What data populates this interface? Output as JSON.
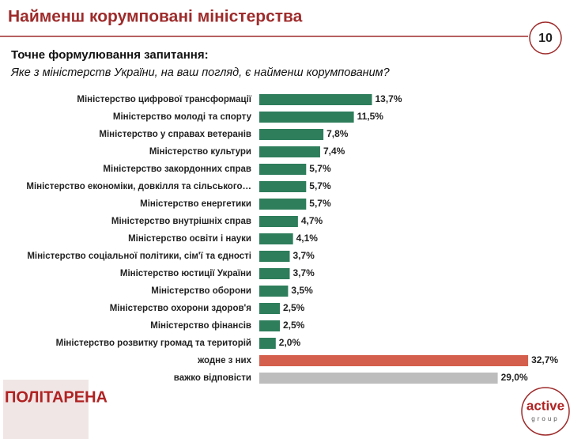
{
  "page_number": "10",
  "logos": {
    "left": "ПОЛІТАРЕНА",
    "right": "active",
    "right_sub": "group"
  },
  "chart_data": {
    "type": "bar",
    "orientation": "horizontal",
    "title": "Найменш корумповані міністерства",
    "subtitle": "Точне формулювання запитання:",
    "question": "Яке з міністерств України, на ваш погляд, є найменш корумпованим?",
    "categories": [
      "Міністерство цифрової трансформації",
      "Міністерство молоді та спорту",
      "Міністерство у справах ветеранів",
      "Міністерство культури",
      "Міністерство закордонних справ",
      "Міністерство економіки, довкілля та сільського…",
      "Міністерство енергетики",
      "Міністерство внутрішніх справ",
      "Міністерство освіти і науки",
      "Міністерство соціальної політики, сім'ї та єдності",
      "Міністерство юстиції України",
      "Міністерство оборони",
      "Міністерство охорони здоров'я",
      "Міністерство фінансів",
      "Міністерство розвитку громад та територій",
      "жодне з них",
      "важко відповісти"
    ],
    "values": [
      13.7,
      11.5,
      7.8,
      7.4,
      5.7,
      5.7,
      5.7,
      4.7,
      4.1,
      3.7,
      3.7,
      3.5,
      2.5,
      2.5,
      2.0,
      32.7,
      29.0
    ],
    "value_labels": [
      "13,7%",
      "11,5%",
      "7,8%",
      "7,4%",
      "5,7%",
      "5,7%",
      "5,7%",
      "4,7%",
      "4,1%",
      "3,7%",
      "3,7%",
      "3,5%",
      "2,5%",
      "2,5%",
      "2,0%",
      "32,7%",
      "29,0%"
    ],
    "colors": [
      "#2e7d5b",
      "#2e7d5b",
      "#2e7d5b",
      "#2e7d5b",
      "#2e7d5b",
      "#2e7d5b",
      "#2e7d5b",
      "#2e7d5b",
      "#2e7d5b",
      "#2e7d5b",
      "#2e7d5b",
      "#2e7d5b",
      "#2e7d5b",
      "#2e7d5b",
      "#2e7d5b",
      "#d45f4c",
      "#bdbdbd"
    ]
  }
}
